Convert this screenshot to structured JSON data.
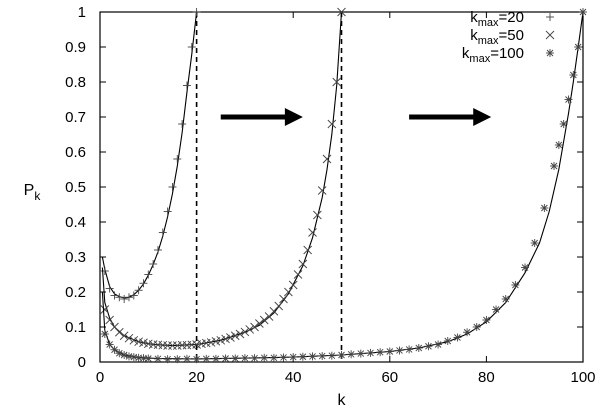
{
  "chart_data": {
    "type": "scatter",
    "xlabel": "k",
    "ylabel": {
      "main": "P",
      "sub": "k"
    },
    "xlim": [
      0,
      100
    ],
    "ylim": [
      0,
      1
    ],
    "xticks": [
      0,
      20,
      40,
      60,
      80,
      100
    ],
    "yticks": [
      0,
      0.1,
      0.2,
      0.3,
      0.4,
      0.5,
      0.6,
      0.7,
      0.8,
      0.9,
      1
    ],
    "grid": false,
    "legend_position": "top-right",
    "series": [
      {
        "name": "k_max=20",
        "label_main": "k",
        "label_sub": "max",
        "label_value": "=20",
        "marker": "plus",
        "points": [
          [
            1,
            0.26
          ],
          [
            2,
            0.21
          ],
          [
            3,
            0.19
          ],
          [
            4,
            0.185
          ],
          [
            5,
            0.18
          ],
          [
            6,
            0.185
          ],
          [
            7,
            0.19
          ],
          [
            8,
            0.205
          ],
          [
            9,
            0.225
          ],
          [
            10,
            0.25
          ],
          [
            11,
            0.28
          ],
          [
            12,
            0.32
          ],
          [
            13,
            0.37
          ],
          [
            14,
            0.43
          ],
          [
            15,
            0.5
          ],
          [
            16,
            0.58
          ],
          [
            17,
            0.68
          ],
          [
            18,
            0.79
          ],
          [
            19,
            0.9
          ],
          [
            20,
            1.0
          ]
        ],
        "curve": [
          [
            0.5,
            0.3
          ],
          [
            1,
            0.265
          ],
          [
            2,
            0.215
          ],
          [
            3,
            0.195
          ],
          [
            4,
            0.187
          ],
          [
            5,
            0.183
          ],
          [
            6,
            0.185
          ],
          [
            7,
            0.192
          ],
          [
            8,
            0.205
          ],
          [
            9,
            0.223
          ],
          [
            10,
            0.248
          ],
          [
            11,
            0.278
          ],
          [
            12,
            0.315
          ],
          [
            13,
            0.36
          ],
          [
            14,
            0.415
          ],
          [
            15,
            0.48
          ],
          [
            16,
            0.56
          ],
          [
            17,
            0.655
          ],
          [
            18,
            0.77
          ],
          [
            19,
            0.88
          ],
          [
            20,
            1.0
          ]
        ]
      },
      {
        "name": "k_max=50",
        "label_main": "k",
        "label_sub": "max",
        "label_value": "=50",
        "marker": "cross",
        "points": [
          [
            1,
            0.15
          ],
          [
            2,
            0.12
          ],
          [
            3,
            0.1
          ],
          [
            4,
            0.085
          ],
          [
            5,
            0.075
          ],
          [
            6,
            0.068
          ],
          [
            7,
            0.062
          ],
          [
            8,
            0.058
          ],
          [
            9,
            0.055
          ],
          [
            10,
            0.052
          ],
          [
            11,
            0.05
          ],
          [
            12,
            0.049
          ],
          [
            13,
            0.048
          ],
          [
            14,
            0.047
          ],
          [
            15,
            0.047
          ],
          [
            16,
            0.047
          ],
          [
            17,
            0.048
          ],
          [
            18,
            0.048
          ],
          [
            19,
            0.049
          ],
          [
            20,
            0.05
          ],
          [
            21,
            0.052
          ],
          [
            22,
            0.054
          ],
          [
            23,
            0.056
          ],
          [
            24,
            0.059
          ],
          [
            25,
            0.062
          ],
          [
            26,
            0.066
          ],
          [
            27,
            0.07
          ],
          [
            28,
            0.075
          ],
          [
            29,
            0.08
          ],
          [
            30,
            0.086
          ],
          [
            31,
            0.093
          ],
          [
            32,
            0.1
          ],
          [
            33,
            0.11
          ],
          [
            34,
            0.12
          ],
          [
            35,
            0.13
          ],
          [
            36,
            0.145
          ],
          [
            37,
            0.16
          ],
          [
            38,
            0.18
          ],
          [
            39,
            0.2
          ],
          [
            40,
            0.22
          ],
          [
            41,
            0.25
          ],
          [
            42,
            0.28
          ],
          [
            43,
            0.32
          ],
          [
            44,
            0.37
          ],
          [
            45,
            0.42
          ],
          [
            46,
            0.49
          ],
          [
            47,
            0.58
          ],
          [
            48,
            0.68
          ],
          [
            49,
            0.8
          ],
          [
            50,
            1.0
          ]
        ],
        "curve": [
          [
            0.5,
            0.27
          ],
          [
            1,
            0.17
          ],
          [
            2,
            0.125
          ],
          [
            3,
            0.1
          ],
          [
            5,
            0.075
          ],
          [
            8,
            0.058
          ],
          [
            11,
            0.05
          ],
          [
            15,
            0.047
          ],
          [
            20,
            0.05
          ],
          [
            25,
            0.062
          ],
          [
            30,
            0.085
          ],
          [
            33,
            0.105
          ],
          [
            36,
            0.14
          ],
          [
            39,
            0.195
          ],
          [
            42,
            0.275
          ],
          [
            44,
            0.355
          ],
          [
            46,
            0.47
          ],
          [
            47,
            0.55
          ],
          [
            48,
            0.65
          ],
          [
            49,
            0.79
          ],
          [
            50,
            1.0
          ]
        ]
      },
      {
        "name": "k_max=100",
        "label_main": "k",
        "label_sub": "max",
        "label_value": "=100",
        "marker": "star",
        "points": [
          [
            1,
            0.08
          ],
          [
            2,
            0.05
          ],
          [
            3,
            0.035
          ],
          [
            4,
            0.025
          ],
          [
            5,
            0.02
          ],
          [
            6,
            0.016
          ],
          [
            7,
            0.014
          ],
          [
            8,
            0.012
          ],
          [
            9,
            0.011
          ],
          [
            10,
            0.01
          ],
          [
            12,
            0.009
          ],
          [
            14,
            0.008
          ],
          [
            16,
            0.008
          ],
          [
            18,
            0.009
          ],
          [
            20,
            0.008
          ],
          [
            22,
            0.009
          ],
          [
            24,
            0.009
          ],
          [
            26,
            0.01
          ],
          [
            28,
            0.01
          ],
          [
            30,
            0.011
          ],
          [
            32,
            0.011
          ],
          [
            34,
            0.012
          ],
          [
            36,
            0.012
          ],
          [
            38,
            0.013
          ],
          [
            40,
            0.014
          ],
          [
            42,
            0.015
          ],
          [
            44,
            0.016
          ],
          [
            46,
            0.017
          ],
          [
            48,
            0.018
          ],
          [
            50,
            0.02
          ],
          [
            52,
            0.022
          ],
          [
            54,
            0.024
          ],
          [
            56,
            0.026
          ],
          [
            58,
            0.028
          ],
          [
            60,
            0.03
          ],
          [
            62,
            0.033
          ],
          [
            64,
            0.036
          ],
          [
            66,
            0.04
          ],
          [
            68,
            0.045
          ],
          [
            70,
            0.05
          ],
          [
            72,
            0.06
          ],
          [
            74,
            0.07
          ],
          [
            76,
            0.085
          ],
          [
            78,
            0.1
          ],
          [
            80,
            0.12
          ],
          [
            82,
            0.15
          ],
          [
            84,
            0.18
          ],
          [
            86,
            0.22
          ],
          [
            88,
            0.27
          ],
          [
            90,
            0.34
          ],
          [
            92,
            0.44
          ],
          [
            94,
            0.56
          ],
          [
            95,
            0.62
          ],
          [
            96,
            0.68
          ],
          [
            97,
            0.75
          ],
          [
            98,
            0.82
          ],
          [
            99,
            0.9
          ],
          [
            100,
            1.0
          ]
        ],
        "curve": [
          [
            0.5,
            0.2
          ],
          [
            1,
            0.09
          ],
          [
            2,
            0.05
          ],
          [
            3,
            0.035
          ],
          [
            5,
            0.02
          ],
          [
            8,
            0.013
          ],
          [
            12,
            0.01
          ],
          [
            20,
            0.009
          ],
          [
            30,
            0.011
          ],
          [
            40,
            0.014
          ],
          [
            50,
            0.02
          ],
          [
            60,
            0.03
          ],
          [
            66,
            0.04
          ],
          [
            72,
            0.058
          ],
          [
            76,
            0.08
          ],
          [
            80,
            0.115
          ],
          [
            84,
            0.17
          ],
          [
            88,
            0.255
          ],
          [
            91,
            0.34
          ],
          [
            93,
            0.43
          ],
          [
            95,
            0.55
          ],
          [
            97,
            0.71
          ],
          [
            98,
            0.8
          ],
          [
            99,
            0.9
          ],
          [
            100,
            1.0
          ]
        ]
      }
    ],
    "vertical_lines": [
      20,
      50
    ],
    "arrows": [
      {
        "from": [
          25,
          0.7
        ],
        "to": [
          42,
          0.7
        ]
      },
      {
        "from": [
          64,
          0.7
        ],
        "to": [
          81,
          0.7
        ]
      }
    ]
  }
}
